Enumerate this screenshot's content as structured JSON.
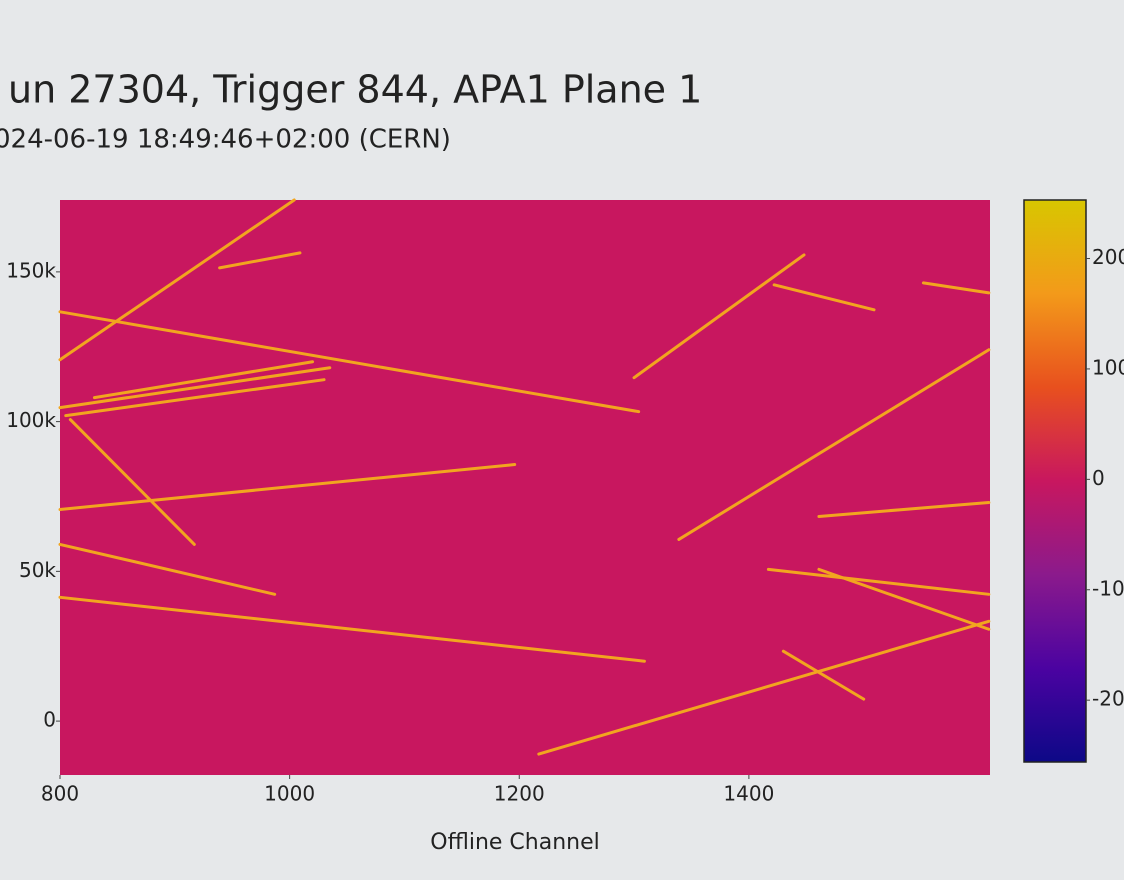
{
  "chart_data": {
    "type": "heatmap",
    "title": "un 27304, Trigger 844, APA1 Plane 1",
    "subtitle": "024-06-19 18:49:46+02:00 (CERN)",
    "x_label": "Offline Channel",
    "xlim": [
      800,
      1610
    ],
    "xticks": [
      800,
      1000,
      1200,
      1400
    ],
    "ylim": [
      -18000,
      174000
    ],
    "yticks": [
      {
        "value": 0,
        "label": "0"
      },
      {
        "value": 50000,
        "label": "50k"
      },
      {
        "value": 100000,
        "label": "100k"
      },
      {
        "value": 150000,
        "label": "150k"
      }
    ],
    "zlim": [
      -256,
      253
    ],
    "zticks": [
      200,
      100,
      0,
      -100,
      -200
    ],
    "colorscale": [
      "#0d0887",
      "#4b03a1",
      "#8b1a8c",
      "#c8175f",
      "#e8501e",
      "#f39a1a",
      "#d8c600"
    ],
    "background_color": "#c8175f",
    "track_color": "#f2a51f",
    "tracks": [
      {
        "x": [
          800,
          1004
        ],
        "y": [
          120667,
          174000
        ]
      },
      {
        "x": [
          939,
          1009
        ],
        "y": [
          151333,
          156333
        ]
      },
      {
        "x": [
          800,
          1304
        ],
        "y": [
          136667,
          103333
        ]
      },
      {
        "x": [
          800,
          1196
        ],
        "y": [
          70667,
          85667
        ]
      },
      {
        "x": [
          800,
          987
        ],
        "y": [
          59000,
          42333
        ]
      },
      {
        "x": [
          800,
          1309
        ],
        "y": [
          41333,
          20000
        ]
      },
      {
        "x": [
          1217,
          1609
        ],
        "y": [
          -11000,
          33333
        ]
      },
      {
        "x": [
          1339,
          1609
        ],
        "y": [
          60667,
          124000
        ]
      },
      {
        "x": [
          1300,
          1448
        ],
        "y": [
          114667,
          155667
        ]
      },
      {
        "x": [
          1422,
          1509
        ],
        "y": [
          145667,
          137333
        ]
      },
      {
        "x": [
          1461,
          1609
        ],
        "y": [
          68333,
          73000
        ]
      },
      {
        "x": [
          1417,
          1609
        ],
        "y": [
          50667,
          42333
        ]
      },
      {
        "x": [
          1461,
          1609
        ],
        "y": [
          50667,
          30667
        ]
      },
      {
        "x": [
          1430,
          1500
        ],
        "y": [
          23333,
          7333
        ]
      },
      {
        "x": [
          809,
          917
        ],
        "y": [
          100667,
          59000
        ]
      },
      {
        "x": [
          1552,
          1609
        ],
        "y": [
          146333,
          143000
        ]
      },
      {
        "x": [
          800,
          1035
        ],
        "y": [
          104667,
          118000
        ]
      },
      {
        "x": [
          805,
          1030
        ],
        "y": [
          102000,
          114000
        ]
      },
      {
        "x": [
          830,
          1020
        ],
        "y": [
          108000,
          120000
        ]
      }
    ]
  }
}
